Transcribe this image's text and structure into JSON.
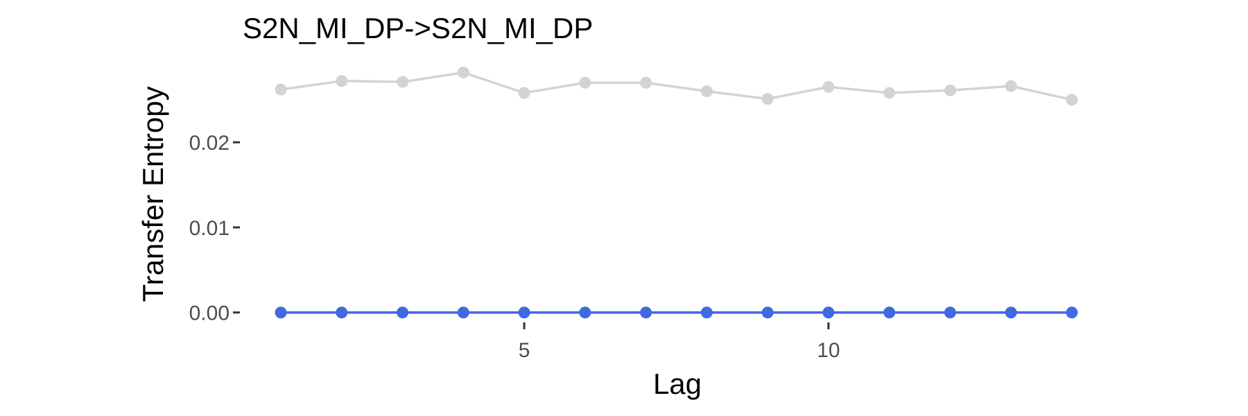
{
  "chart_data": {
    "type": "line",
    "title": "S2N_MI_DP->S2N_MI_DP",
    "xlabel": "Lag",
    "ylabel": "Transfer Entropy",
    "xlim": [
      0.35,
      14.65
    ],
    "ylim": [
      -0.001,
      0.0302
    ],
    "x_ticks": [
      5,
      10
    ],
    "y_ticks": [
      0.0,
      0.01,
      0.02
    ],
    "y_tick_labels": [
      "0.00",
      "0.01",
      "0.02"
    ],
    "grid": false,
    "legend": "none",
    "x": [
      1,
      2,
      3,
      4,
      5,
      6,
      7,
      8,
      9,
      10,
      11,
      12,
      13,
      14
    ],
    "series": [
      {
        "color": "#d3d3d3",
        "values": [
          0.0262,
          0.0272,
          0.0271,
          0.0282,
          0.0258,
          0.027,
          0.027,
          0.026,
          0.0251,
          0.0265,
          0.0258,
          0.0261,
          0.0266,
          0.025
        ]
      },
      {
        "color": "#4169e1",
        "values": [
          0.0,
          0.0,
          0.0,
          0.0,
          0.0,
          0.0,
          0.0,
          0.0,
          0.0,
          0.0,
          0.0,
          0.0,
          0.0,
          0.0
        ]
      }
    ]
  }
}
